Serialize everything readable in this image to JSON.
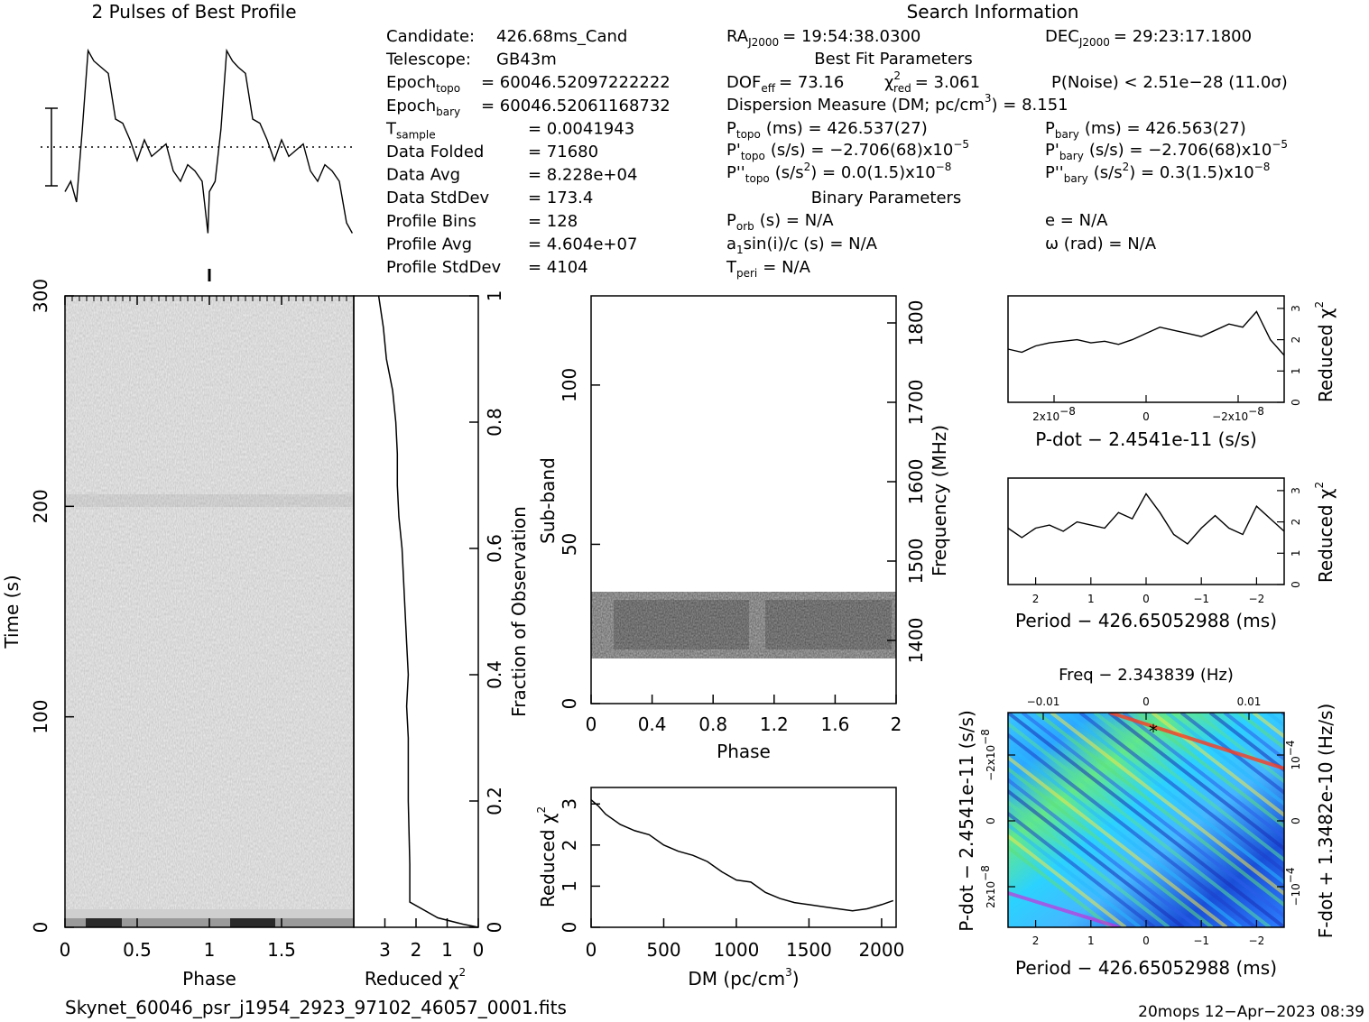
{
  "header": {
    "profile_title": "2 Pulses of Best Profile",
    "search_title": "Search Information"
  },
  "candidate_info": [
    {
      "label": "Candidate:",
      "value": "426.68ms_Cand"
    },
    {
      "label": "Telescope:",
      "value": "GB43m"
    },
    {
      "label": "Epoch",
      "sub": "topo",
      "value": "= 60046.52097222222"
    },
    {
      "label": "Epoch",
      "sub": "bary",
      "value": "= 60046.52061168732"
    },
    {
      "label": "T",
      "sub": "sample",
      "value": "=   0.0041943"
    },
    {
      "label": "Data Folded",
      "value": "=   71680"
    },
    {
      "label": "Data Avg",
      "value": "=   8.228e+04"
    },
    {
      "label": "Data StdDev",
      "value": "=   173.4"
    },
    {
      "label": "Profile Bins",
      "value": "=   128"
    },
    {
      "label": "Profile Avg",
      "value": "=   4.604e+07"
    },
    {
      "label": "Profile StdDev",
      "value": "=   4104"
    }
  ],
  "search_info": {
    "ra_label": "RA",
    "ra_sub": "J2000",
    "ra_value": "= 19:54:38.0300",
    "dec_label": "DEC",
    "dec_sub": "J2000",
    "dec_value": "= 29:23:17.1800",
    "best_fit_title": "Best Fit Parameters",
    "dof_label": "DOF",
    "dof_sub": "eff",
    "dof_value": "= 73.16",
    "chi_label": "χ",
    "chi_sup": "2",
    "chi_sub": "red",
    "chi_value": "= 3.061",
    "pnoise": "P(Noise) < 2.51e−28   (11.0σ)",
    "dm_line": "Dispersion Measure (DM; pc/cm",
    "dm_sup": "3",
    "dm_value": ") = 8.151",
    "ptopo_label": "P",
    "ptopo_sub": "topo",
    "ptopo_value": "(ms) =  426.537(27)",
    "pbary_label": "P",
    "pbary_sub": "bary",
    "pbary_value": "(ms) =  426.563(27)",
    "pdtopo_label": "P'",
    "pdtopo_sub": "topo",
    "pdtopo_value": "(s/s) = −2.706(68)x10",
    "pdtopo_exp": "−5",
    "pdbary_label": "P'",
    "pdbary_sub": "bary",
    "pdbary_value": "(s/s) = −2.706(68)x10",
    "pdbary_exp": "−5",
    "pddtopo_label": "P''",
    "pddtopo_sub": "topo",
    "pddtopo_value": "(s/s",
    "pddtopo_unit_sup": "2",
    "pddtopo_value2": ") = 0.0(1.5)x10",
    "pddtopo_exp": "−8",
    "pddbary_label": "P''",
    "pddbary_sub": "bary",
    "pddbary_value": "(s/s",
    "pddbary_unit_sup": "2",
    "pddbary_value2": ") =  0.3(1.5)x10",
    "pddbary_exp": "−8",
    "binary_title": "Binary Parameters",
    "porb_label": "P",
    "porb_sub": "orb",
    "porb_value": "(s) = N/A",
    "e_line": "e = N/A",
    "a1_label": "a",
    "a1_sub": "1",
    "a1_value": "sin(i)/c (s) = N/A",
    "omega_line": "ω (rad) = N/A",
    "tperi_label": "T",
    "tperi_sub": "peri",
    "tperi_value": "= N/A"
  },
  "footer": {
    "filename": "Skynet_60046_psr_j1954_2923_97102_46057_0001.fits",
    "stamp": "20mops 12−Apr−2023 08:39"
  },
  "chart_data": [
    {
      "id": "pulse_profile",
      "type": "line",
      "title": "2 Pulses of Best Profile",
      "x": [
        0.0,
        0.04,
        0.08,
        0.12,
        0.16,
        0.2,
        0.25,
        0.3,
        0.35,
        0.4,
        0.45,
        0.5,
        0.55,
        0.6,
        0.65,
        0.7,
        0.75,
        0.8,
        0.85,
        0.9,
        0.95,
        0.99,
        1.0,
        1.04,
        1.08,
        1.12,
        1.16,
        1.2,
        1.25,
        1.3,
        1.35,
        1.4,
        1.45,
        1.5,
        1.55,
        1.6,
        1.65,
        1.7,
        1.75,
        1.8,
        1.85,
        1.9,
        1.95,
        1.99
      ],
      "values": [
        0.25,
        0.3,
        0.2,
        0.55,
        0.93,
        0.88,
        0.85,
        0.82,
        0.6,
        0.58,
        0.5,
        0.4,
        0.5,
        0.42,
        0.45,
        0.48,
        0.35,
        0.3,
        0.38,
        0.35,
        0.3,
        0.05,
        0.25,
        0.3,
        0.55,
        0.93,
        0.88,
        0.85,
        0.82,
        0.6,
        0.58,
        0.5,
        0.4,
        0.5,
        0.42,
        0.45,
        0.48,
        0.35,
        0.3,
        0.38,
        0.35,
        0.3,
        0.1,
        0.05
      ]
    },
    {
      "id": "time_phase",
      "type": "heatmap",
      "xlabel": "Phase",
      "ylabel": "Time (s)",
      "xlim": [
        0,
        2
      ],
      "ylim": [
        0,
        300
      ],
      "x_ticks": [
        "0",
        "0.5",
        "1",
        "1.5"
      ],
      "y_ticks": [
        "0",
        "100",
        "200",
        "300"
      ]
    },
    {
      "id": "time_chi2",
      "type": "line",
      "xlabel": "Reduced χ2",
      "ylabel": "Fraction of Observation",
      "x_ticks": [
        "3",
        "2",
        "1",
        "0"
      ],
      "y_ticks": [
        "0",
        "0.2",
        "0.4",
        "0.6",
        "0.8",
        "1"
      ],
      "x": [
        3.2,
        3.05,
        2.95,
        2.75,
        2.65,
        2.6,
        2.6,
        2.55,
        2.45,
        2.4,
        2.35,
        2.3,
        2.25,
        2.3,
        2.25,
        2.25,
        2.2,
        2.2,
        1.3,
        0.5,
        0.0
      ],
      "y": [
        1.0,
        0.95,
        0.9,
        0.85,
        0.8,
        0.75,
        0.7,
        0.65,
        0.6,
        0.55,
        0.5,
        0.45,
        0.4,
        0.35,
        0.3,
        0.2,
        0.1,
        0.04,
        0.015,
        0.005,
        0.0
      ]
    },
    {
      "id": "subband_phase",
      "type": "heatmap",
      "xlabel": "Phase",
      "ylabel": "Sub-band",
      "y2label": "Frequency (MHz)",
      "xlim": [
        0,
        2
      ],
      "ylim": [
        0,
        128
      ],
      "x_ticks": [
        "0",
        "0.4",
        "0.8",
        "1.2",
        "1.6",
        "2"
      ],
      "y_ticks": [
        "0",
        "50",
        "100"
      ],
      "y2_ticks": [
        "1400",
        "1500",
        "1600",
        "1700",
        "1800"
      ],
      "active_subbands": [
        15,
        35
      ]
    },
    {
      "id": "dm_chi2",
      "type": "line",
      "xlabel": "DM (pc/cm3)",
      "ylabel": "Reduced χ2",
      "xlim": [
        0,
        2100
      ],
      "ylim": [
        0,
        3.4
      ],
      "x_ticks": [
        "0",
        "500",
        "1000",
        "1500",
        "2000"
      ],
      "y_ticks": [
        "0",
        "1",
        "2",
        "3"
      ],
      "x": [
        0,
        50,
        100,
        200,
        300,
        400,
        500,
        600,
        700,
        800,
        900,
        1000,
        1100,
        1200,
        1300,
        1400,
        1500,
        1600,
        1700,
        1800,
        1900,
        2000,
        2080
      ],
      "y": [
        3.1,
        2.95,
        2.75,
        2.5,
        2.35,
        2.25,
        2.0,
        1.85,
        1.75,
        1.6,
        1.35,
        1.15,
        1.1,
        0.85,
        0.7,
        0.6,
        0.55,
        0.5,
        0.45,
        0.4,
        0.45,
        0.55,
        0.65
      ]
    },
    {
      "id": "pdot_chi2",
      "type": "line",
      "xlabel": "P-dot − 2.4541e-11 (s/s)",
      "ylabel": "Reduced χ2",
      "ylim": [
        0,
        3.4
      ],
      "x_ticks": [
        "2x10",
        "0",
        "−2x10"
      ],
      "x_tick_exp": "−8",
      "y_ticks": [
        "0",
        "1",
        "2",
        "3"
      ],
      "x": [
        0,
        0.05,
        0.1,
        0.15,
        0.2,
        0.25,
        0.3,
        0.35,
        0.4,
        0.45,
        0.5,
        0.55,
        0.6,
        0.65,
        0.7,
        0.75,
        0.8,
        0.85,
        0.9,
        0.95,
        1.0
      ],
      "y": [
        1.7,
        1.6,
        1.8,
        1.9,
        1.95,
        2.0,
        1.9,
        1.95,
        1.85,
        2.0,
        2.2,
        2.4,
        2.3,
        2.2,
        2.1,
        2.3,
        2.5,
        2.4,
        2.9,
        2.0,
        1.5
      ]
    },
    {
      "id": "period_chi2",
      "type": "line",
      "xlabel": "Period − 426.65052988 (ms)",
      "ylabel": "Reduced χ2",
      "ylim": [
        0,
        3.4
      ],
      "x_ticks": [
        "2",
        "1",
        "0",
        "−1",
        "−2"
      ],
      "y_ticks": [
        "0",
        "1",
        "2",
        "3"
      ],
      "x": [
        0,
        0.05,
        0.1,
        0.15,
        0.2,
        0.25,
        0.3,
        0.35,
        0.4,
        0.45,
        0.5,
        0.55,
        0.6,
        0.65,
        0.7,
        0.75,
        0.8,
        0.85,
        0.9,
        0.95,
        1.0
      ],
      "y": [
        1.8,
        1.5,
        1.8,
        1.9,
        1.7,
        2.0,
        1.9,
        1.8,
        2.3,
        2.1,
        2.9,
        2.3,
        1.6,
        1.3,
        1.8,
        2.2,
        1.8,
        1.6,
        2.5,
        2.1,
        1.7
      ]
    },
    {
      "id": "pp_dot_map",
      "type": "heatmap",
      "title": "Freq − 2.343839 (Hz)",
      "xlabel": "Period − 426.65052988 (ms)",
      "ylabel": "P-dot − 2.4541e-11 (s/s)",
      "y2label": "F-dot + 1.3482e-10 (Hz/s)",
      "x_ticks": [
        "2",
        "1",
        "0",
        "−1",
        "−2"
      ],
      "top_ticks": [
        "−0.01",
        "0",
        "0.01"
      ],
      "y_ticks": [
        "−2x10",
        "0",
        "2x10"
      ],
      "y_tick_exp": "−8",
      "y2_ticks": [
        "10",
        "0",
        "−10"
      ],
      "y2_tick_exp": "−4"
    }
  ]
}
